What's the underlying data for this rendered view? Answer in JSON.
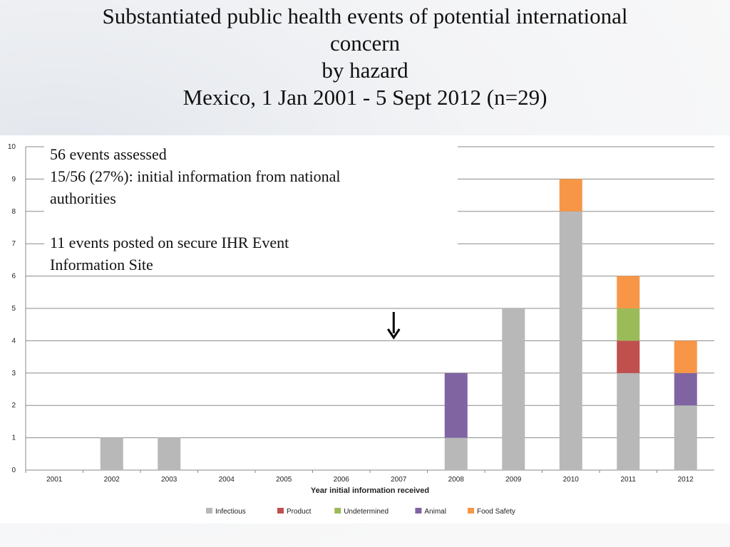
{
  "title_lines": [
    "Substantiated public health events of potential international",
    "concern",
    "by hazard",
    "Mexico, 1 Jan 2001 - 5 Sept 2012 (n=29)"
  ],
  "note": {
    "line1": "56 events assessed",
    "line2": "15/56 (27%): initial information from national",
    "line3": "authorities",
    "line4": "11 events posted on secure IHR Event",
    "line5": "Information Site"
  },
  "arrow_icon": "down-arrow-icon",
  "chart_data": {
    "type": "bar",
    "stacked": true,
    "title": "",
    "xlabel": "Year initial information received",
    "ylabel": "",
    "ylim": [
      0,
      10
    ],
    "yticks": [
      "0",
      "1",
      "2",
      "3",
      "4",
      "5",
      "6",
      "7",
      "8",
      "9",
      "10"
    ],
    "grid": true,
    "legend_position": "bottom",
    "categories": [
      "2001",
      "2002",
      "2003",
      "2004",
      "2005",
      "2006",
      "2007",
      "2008",
      "2009",
      "2010",
      "2011",
      "2012"
    ],
    "arrow_category": "2007",
    "series": [
      {
        "name": "Infectious",
        "color": "#b8b8b8",
        "values": [
          0,
          1,
          1,
          0,
          0,
          0,
          0,
          1,
          5,
          8,
          3,
          2
        ]
      },
      {
        "name": "Product",
        "color": "#c0504d",
        "values": [
          0,
          0,
          0,
          0,
          0,
          0,
          0,
          0,
          0,
          0,
          1,
          0
        ]
      },
      {
        "name": "Undetermined",
        "color": "#9bbb59",
        "values": [
          0,
          0,
          0,
          0,
          0,
          0,
          0,
          0,
          0,
          0,
          1,
          0
        ]
      },
      {
        "name": "Animal",
        "color": "#8064a2",
        "values": [
          0,
          0,
          0,
          0,
          0,
          0,
          0,
          2,
          0,
          0,
          0,
          1
        ]
      },
      {
        "name": "Food Safety",
        "color": "#f79646",
        "values": [
          0,
          0,
          0,
          0,
          0,
          0,
          0,
          0,
          0,
          1,
          1,
          1
        ]
      }
    ]
  }
}
